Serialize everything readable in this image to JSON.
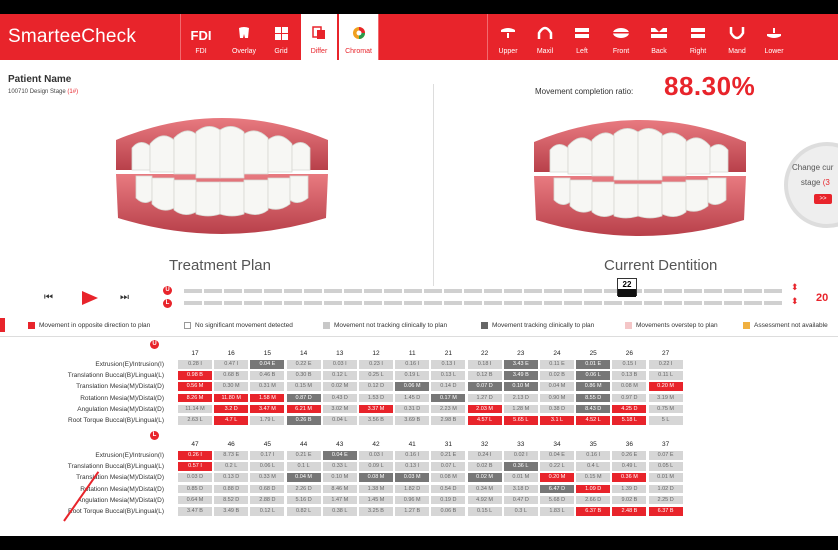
{
  "app": {
    "title": "SmarteeCheck"
  },
  "toolbar": {
    "left": [
      {
        "label": "FDI",
        "icon": "FDI"
      },
      {
        "label": "Overlay",
        "icon": "tooth-icon"
      },
      {
        "label": "Grid",
        "icon": "grid-icon"
      },
      {
        "label": "Differ",
        "icon": "differ-icon"
      },
      {
        "label": "Chromat",
        "icon": "chromat-icon"
      }
    ],
    "right": [
      {
        "label": "Upper"
      },
      {
        "label": "Maxil"
      },
      {
        "label": "Left"
      },
      {
        "label": "Front"
      },
      {
        "label": "Back"
      },
      {
        "label": "Right"
      },
      {
        "label": "Mand"
      },
      {
        "label": "Lower"
      }
    ]
  },
  "patient": {
    "name": "Patient Name",
    "stage_prefix": "100710 Design Stage",
    "stage_num": "(1#)"
  },
  "ratio": {
    "label": "Movement completion ratio:",
    "value": "88.30%"
  },
  "views": {
    "left": "Treatment Plan",
    "right": "Current Dentition"
  },
  "change": {
    "line1": "Change cur",
    "line2": "stage",
    "line2_num": "(3",
    "btn": ">>"
  },
  "player": {
    "marker": "22",
    "stage": "20",
    "upper": "U",
    "lower": "L"
  },
  "legend": [
    {
      "label": "Movement in opposite direction to plan",
      "color": "#e8242b"
    },
    {
      "label": "No significant movement detected",
      "color": "#ffffff"
    },
    {
      "label": "Movement not tracking clinically to plan",
      "color": "#c8c8c8"
    },
    {
      "label": "Movement tracking clinically to plan",
      "color": "#666666"
    },
    {
      "label": "Movements overstep to plan",
      "color": "#f4c6c7"
    },
    {
      "label": "Assessment not available",
      "color": "#f0b040"
    }
  ],
  "row_labels": [
    "Extrusion(E)/Intrusion(I)",
    "Translationn Buccal(B)/Lingual(L)",
    "Translation Mesia(M)/Distal(D)",
    "Rotationn Mesia(M)/Distal(D)",
    "Angulation Mesia(M)/Distal(D)",
    "Root Torque Buccal(B)/Lingual(L)"
  ],
  "upper": {
    "badge": "U",
    "teeth": [
      "17",
      "16",
      "15",
      "14",
      "13",
      "12",
      "11",
      "21",
      "22",
      "23",
      "24",
      "25",
      "26",
      "27"
    ],
    "rows": [
      [
        [
          "0.28 I",
          "l"
        ],
        [
          "0.47 I",
          "l"
        ],
        [
          "0.04 E",
          "d"
        ],
        [
          "0.22 E",
          "l"
        ],
        [
          "0.03 I",
          "l"
        ],
        [
          "0.23 I",
          "l"
        ],
        [
          "0.16 I",
          "l"
        ],
        [
          "0.13 I",
          "l"
        ],
        [
          "0.18 I",
          "l"
        ],
        [
          "3.43 E",
          "d"
        ],
        [
          "0.11 E",
          "l"
        ],
        [
          "0.01 E",
          "d"
        ],
        [
          "0.15 I",
          "l"
        ],
        [
          "0.22 I",
          "l"
        ]
      ],
      [
        [
          "0.98 B",
          "r"
        ],
        [
          "0.68 B",
          "l"
        ],
        [
          "0.46 B",
          "l"
        ],
        [
          "0.30 B",
          "l"
        ],
        [
          "0.12 L",
          "l"
        ],
        [
          "0.25 L",
          "l"
        ],
        [
          "0.19 L",
          "l"
        ],
        [
          "0.13 L",
          "l"
        ],
        [
          "0.12 B",
          "l"
        ],
        [
          "3.49 B",
          "d"
        ],
        [
          "0.02 B",
          "l"
        ],
        [
          "0.06 L",
          "d"
        ],
        [
          "0.13 B",
          "l"
        ],
        [
          "0.11 L",
          "l"
        ]
      ],
      [
        [
          "0.56 M",
          "r"
        ],
        [
          "0.30 M",
          "l"
        ],
        [
          "0.31 M",
          "l"
        ],
        [
          "0.15 M",
          "l"
        ],
        [
          "0.02 M",
          "l"
        ],
        [
          "0.12 D",
          "l"
        ],
        [
          "0.06 M",
          "d"
        ],
        [
          "0.14 D",
          "l"
        ],
        [
          "0.07 D",
          "d"
        ],
        [
          "0.10 M",
          "d"
        ],
        [
          "0.04 M",
          "l"
        ],
        [
          "0.86 M",
          "d"
        ],
        [
          "0.08 M",
          "l"
        ],
        [
          "0.20 M",
          "r"
        ]
      ],
      [
        [
          "8.26 M",
          "r"
        ],
        [
          "11.80 M",
          "r"
        ],
        [
          "1.58 M",
          "r"
        ],
        [
          "0.87 D",
          "d"
        ],
        [
          "0.43 D",
          "l"
        ],
        [
          "1.53 D",
          "l"
        ],
        [
          "1.45 D",
          "l"
        ],
        [
          "0.17 M",
          "d"
        ],
        [
          "1.27 D",
          "l"
        ],
        [
          "2.13 D",
          "l"
        ],
        [
          "0.90 M",
          "l"
        ],
        [
          "8.55 D",
          "d"
        ],
        [
          "0.97 D",
          "l"
        ],
        [
          "3.19 M",
          "l"
        ]
      ],
      [
        [
          "11.14 M",
          "l"
        ],
        [
          "3.2 D",
          "r"
        ],
        [
          "3.47 M",
          "r"
        ],
        [
          "6.21 M",
          "r"
        ],
        [
          "3.02 M",
          "l"
        ],
        [
          "3.37 M",
          "r"
        ],
        [
          "0.31 D",
          "l"
        ],
        [
          "2.23 M",
          "l"
        ],
        [
          "2.03 M",
          "r"
        ],
        [
          "1.28 M",
          "l"
        ],
        [
          "0.38 D",
          "l"
        ],
        [
          "8.43 D",
          "d"
        ],
        [
          "4.25 D",
          "r"
        ],
        [
          "0.75 M",
          "l"
        ]
      ],
      [
        [
          "2.63 L",
          "l"
        ],
        [
          "4.7 L",
          "r"
        ],
        [
          "1.79 L",
          "l"
        ],
        [
          "0.26 B",
          "d"
        ],
        [
          "0.04 L",
          "l"
        ],
        [
          "3.56 B",
          "l"
        ],
        [
          "3.69 B",
          "l"
        ],
        [
          "2.98 B",
          "l"
        ],
        [
          "4.57 L",
          "r"
        ],
        [
          "5.65 L",
          "r"
        ],
        [
          "3.1 L",
          "r"
        ],
        [
          "4.52 L",
          "r"
        ],
        [
          "5.18 L",
          "r"
        ],
        [
          "5 L",
          "l"
        ]
      ]
    ]
  },
  "lower": {
    "badge": "L",
    "teeth": [
      "47",
      "46",
      "45",
      "44",
      "43",
      "42",
      "41",
      "31",
      "32",
      "33",
      "34",
      "35",
      "36",
      "37"
    ],
    "rows": [
      [
        [
          "0.26 I",
          "r"
        ],
        [
          "8.73 E",
          "l"
        ],
        [
          "0.17 I",
          "l"
        ],
        [
          "0.21 E",
          "l"
        ],
        [
          "0.04 E",
          "d"
        ],
        [
          "0.03 I",
          "l"
        ],
        [
          "0.16 I",
          "l"
        ],
        [
          "0.21 E",
          "l"
        ],
        [
          "0.24 I",
          "l"
        ],
        [
          "0.02 I",
          "l"
        ],
        [
          "0.04 E",
          "l"
        ],
        [
          "0.16 I",
          "l"
        ],
        [
          "0.26 E",
          "l"
        ],
        [
          "0.07 E",
          "l"
        ]
      ],
      [
        [
          "0.57 I",
          "r"
        ],
        [
          "0.2 L",
          "l"
        ],
        [
          "0.06 L",
          "l"
        ],
        [
          "0.1 L",
          "l"
        ],
        [
          "0.33 L",
          "l"
        ],
        [
          "0.09 L",
          "l"
        ],
        [
          "0.13 I",
          "l"
        ],
        [
          "0.07 L",
          "l"
        ],
        [
          "0.02 B",
          "l"
        ],
        [
          "0.36 L",
          "d"
        ],
        [
          "0.22 L",
          "l"
        ],
        [
          "0.4 L",
          "l"
        ],
        [
          "0.49 L",
          "l"
        ],
        [
          "0.05 L",
          "l"
        ]
      ],
      [
        [
          "0.03 D",
          "l"
        ],
        [
          "0.13 D",
          "l"
        ],
        [
          "0.33 M",
          "l"
        ],
        [
          "0.04 M",
          "d"
        ],
        [
          "0.10 M",
          "l"
        ],
        [
          "0.08 M",
          "d"
        ],
        [
          "0.03 M",
          "d"
        ],
        [
          "0.08 M",
          "l"
        ],
        [
          "0.02 M",
          "d"
        ],
        [
          "0.01 M",
          "l"
        ],
        [
          "0.20 M",
          "r"
        ],
        [
          "0.15 M",
          "l"
        ],
        [
          "0.36 M",
          "r"
        ],
        [
          "0.01 M",
          "l"
        ]
      ],
      [
        [
          "0.85 D",
          "l"
        ],
        [
          "0.88 D",
          "l"
        ],
        [
          "0.68 D",
          "l"
        ],
        [
          "2.26 D",
          "l"
        ],
        [
          "8.46 M",
          "l"
        ],
        [
          "1.38 M",
          "l"
        ],
        [
          "1.82 D",
          "l"
        ],
        [
          "0.54 D",
          "l"
        ],
        [
          "0.34 M",
          "l"
        ],
        [
          "3.18 D",
          "l"
        ],
        [
          "6.47 D",
          "d"
        ],
        [
          "1.09 D",
          "r"
        ],
        [
          "1.39 D",
          "l"
        ],
        [
          "1.02 D",
          "l"
        ]
      ],
      [
        [
          "0.64 M",
          "l"
        ],
        [
          "8.52 D",
          "l"
        ],
        [
          "2.88 D",
          "l"
        ],
        [
          "5.16 D",
          "l"
        ],
        [
          "1.47 M",
          "l"
        ],
        [
          "1.45 M",
          "l"
        ],
        [
          "0.96 M",
          "l"
        ],
        [
          "0.19 D",
          "l"
        ],
        [
          "4.92 M",
          "l"
        ],
        [
          "0.47 D",
          "l"
        ],
        [
          "5.68 D",
          "l"
        ],
        [
          "2.66 D",
          "l"
        ],
        [
          "9.02 B",
          "l"
        ],
        [
          "2.25 D",
          "l"
        ]
      ],
      [
        [
          "3.47 B",
          "l"
        ],
        [
          "3.49 B",
          "l"
        ],
        [
          "0.12 L",
          "l"
        ],
        [
          "0.82 L",
          "l"
        ],
        [
          "0.38 L",
          "l"
        ],
        [
          "3.25 B",
          "l"
        ],
        [
          "1.27 B",
          "l"
        ],
        [
          "0.06 B",
          "l"
        ],
        [
          "0.15 L",
          "l"
        ],
        [
          "0.3 L",
          "l"
        ],
        [
          "1.83 L",
          "l"
        ],
        [
          "6.37 B",
          "r"
        ],
        [
          "2.48 B",
          "r"
        ],
        [
          "6.37 B",
          "r"
        ]
      ]
    ]
  }
}
